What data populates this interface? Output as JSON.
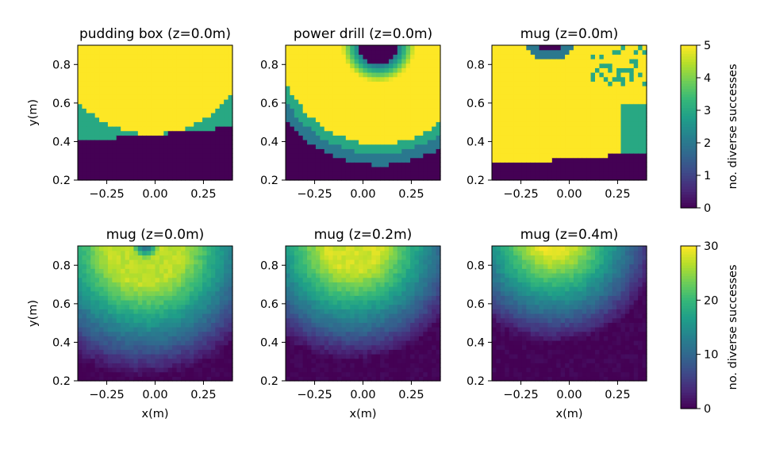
{
  "chart_data": [
    {
      "type": "heatmap",
      "title": "pudding box (z=0.0m)",
      "xlabel": "",
      "ylabel": "y(m)",
      "xlim": [
        -0.4,
        0.4
      ],
      "ylim": [
        0.2,
        0.9
      ],
      "xticks": [
        "−0.25",
        "0.00",
        "0.25"
      ],
      "yticks": [
        "0.2",
        "0.4",
        "0.6",
        "0.8"
      ],
      "colorbar": "top",
      "pattern": {
        "kind": "pudding"
      }
    },
    {
      "type": "heatmap",
      "title": "power drill (z=0.0m)",
      "xlabel": "",
      "ylabel": "",
      "xlim": [
        -0.4,
        0.4
      ],
      "ylim": [
        0.2,
        0.9
      ],
      "xticks": [
        "−0.25",
        "0.00",
        "0.25"
      ],
      "yticks": [
        "0.2",
        "0.4",
        "0.6",
        "0.8"
      ],
      "colorbar": "top",
      "pattern": {
        "kind": "ring",
        "cx": 0.08,
        "cy": 0.9,
        "r_in": 0.1,
        "r_full": 0.19,
        "r_edge": 0.51,
        "bands": [
          [
            0.56,
            3
          ],
          [
            0.62,
            2
          ],
          [
            0.9,
            0
          ]
        ]
      }
    },
    {
      "type": "heatmap",
      "title": "mug (z=0.0m)",
      "xlabel": "",
      "ylabel": "",
      "xlim": [
        -0.4,
        0.4
      ],
      "ylim": [
        0.2,
        0.9
      ],
      "xticks": [
        "−0.25",
        "0.00",
        "0.25"
      ],
      "yticks": [
        "0.2",
        "0.4",
        "0.6",
        "0.8"
      ],
      "colorbar": "top",
      "pattern": {
        "kind": "mug5"
      }
    },
    {
      "type": "heatmap",
      "title": "mug (z=0.0m)",
      "xlabel": "x(m)",
      "ylabel": "y(m)",
      "xlim": [
        -0.4,
        0.4
      ],
      "ylim": [
        0.2,
        0.9
      ],
      "xticks": [
        "−0.25",
        "0.00",
        "0.25"
      ],
      "yticks": [
        "0.2",
        "0.4",
        "0.6",
        "0.8"
      ],
      "colorbar": "bottom",
      "pattern": {
        "kind": "grad",
        "cx": -0.05,
        "cy": 0.9,
        "hole": 0.07,
        "peak_r": 0.2,
        "peak": 27,
        "zero_r": 0.68
      }
    },
    {
      "type": "heatmap",
      "title": "mug (z=0.2m)",
      "xlabel": "x(m)",
      "ylabel": "",
      "xlim": [
        -0.4,
        0.4
      ],
      "ylim": [
        0.2,
        0.9
      ],
      "xticks": [
        "−0.25",
        "0.00",
        "0.25"
      ],
      "yticks": [
        "0.2",
        "0.4",
        "0.6",
        "0.8"
      ],
      "colorbar": "bottom",
      "pattern": {
        "kind": "grad",
        "cx": -0.05,
        "cy": 0.92,
        "hole": 0.0,
        "peak_r": 0.15,
        "peak": 28,
        "zero_r": 0.62
      }
    },
    {
      "type": "heatmap",
      "title": "mug (z=0.4m)",
      "xlabel": "x(m)",
      "ylabel": "",
      "xlim": [
        -0.4,
        0.4
      ],
      "ylim": [
        0.2,
        0.9
      ],
      "xticks": [
        "−0.25",
        "0.00",
        "0.25"
      ],
      "yticks": [
        "0.2",
        "0.4",
        "0.6",
        "0.8"
      ],
      "colorbar": "bottom",
      "pattern": {
        "kind": "grad",
        "cx": -0.08,
        "cy": 0.95,
        "hole": 0.0,
        "peak_r": 0.1,
        "peak": 29,
        "zero_r": 0.56
      }
    }
  ],
  "colorbars": [
    {
      "name": "top",
      "label": "no. diverse successes",
      "min": 0,
      "max": 5,
      "ticks": [
        "0",
        "1",
        "2",
        "3",
        "4",
        "5"
      ]
    },
    {
      "name": "bottom",
      "label": "no. diverse successes",
      "min": 0,
      "max": 30,
      "ticks": [
        "0",
        "10",
        "20",
        "30"
      ]
    }
  ],
  "colormap": "viridis"
}
